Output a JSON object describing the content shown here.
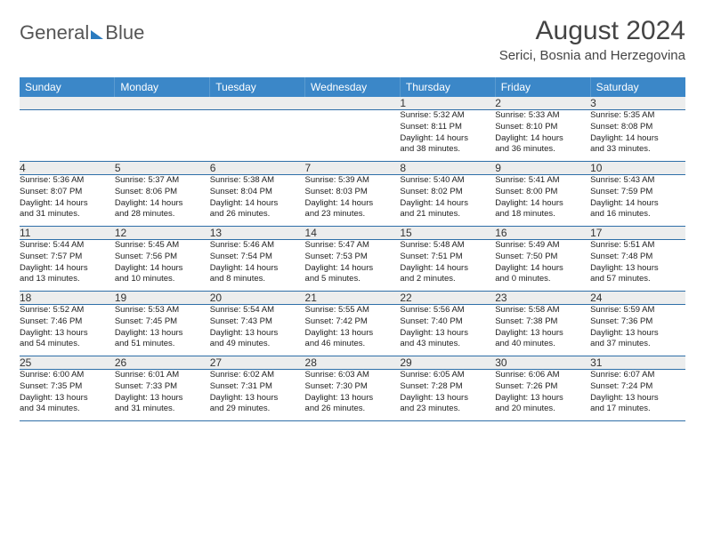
{
  "logo": {
    "part1": "General",
    "part2": "Blue"
  },
  "title": "August 2024",
  "subtitle": "Serici, Bosnia and Herzegovina",
  "day_headers": [
    "Sunday",
    "Monday",
    "Tuesday",
    "Wednesday",
    "Thursday",
    "Friday",
    "Saturday"
  ],
  "colors": {
    "header_bg": "#3b87c8",
    "daynum_bg": "#eceded",
    "row_border": "#2f6fa8"
  },
  "weeks": [
    {
      "nums": [
        "",
        "",
        "",
        "",
        "1",
        "2",
        "3"
      ],
      "cells": [
        {
          "sunrise": "",
          "sunset": "",
          "daylight1": "",
          "daylight2": ""
        },
        {
          "sunrise": "",
          "sunset": "",
          "daylight1": "",
          "daylight2": ""
        },
        {
          "sunrise": "",
          "sunset": "",
          "daylight1": "",
          "daylight2": ""
        },
        {
          "sunrise": "",
          "sunset": "",
          "daylight1": "",
          "daylight2": ""
        },
        {
          "sunrise": "Sunrise: 5:32 AM",
          "sunset": "Sunset: 8:11 PM",
          "daylight1": "Daylight: 14 hours",
          "daylight2": "and 38 minutes."
        },
        {
          "sunrise": "Sunrise: 5:33 AM",
          "sunset": "Sunset: 8:10 PM",
          "daylight1": "Daylight: 14 hours",
          "daylight2": "and 36 minutes."
        },
        {
          "sunrise": "Sunrise: 5:35 AM",
          "sunset": "Sunset: 8:08 PM",
          "daylight1": "Daylight: 14 hours",
          "daylight2": "and 33 minutes."
        }
      ]
    },
    {
      "nums": [
        "4",
        "5",
        "6",
        "7",
        "8",
        "9",
        "10"
      ],
      "cells": [
        {
          "sunrise": "Sunrise: 5:36 AM",
          "sunset": "Sunset: 8:07 PM",
          "daylight1": "Daylight: 14 hours",
          "daylight2": "and 31 minutes."
        },
        {
          "sunrise": "Sunrise: 5:37 AM",
          "sunset": "Sunset: 8:06 PM",
          "daylight1": "Daylight: 14 hours",
          "daylight2": "and 28 minutes."
        },
        {
          "sunrise": "Sunrise: 5:38 AM",
          "sunset": "Sunset: 8:04 PM",
          "daylight1": "Daylight: 14 hours",
          "daylight2": "and 26 minutes."
        },
        {
          "sunrise": "Sunrise: 5:39 AM",
          "sunset": "Sunset: 8:03 PM",
          "daylight1": "Daylight: 14 hours",
          "daylight2": "and 23 minutes."
        },
        {
          "sunrise": "Sunrise: 5:40 AM",
          "sunset": "Sunset: 8:02 PM",
          "daylight1": "Daylight: 14 hours",
          "daylight2": "and 21 minutes."
        },
        {
          "sunrise": "Sunrise: 5:41 AM",
          "sunset": "Sunset: 8:00 PM",
          "daylight1": "Daylight: 14 hours",
          "daylight2": "and 18 minutes."
        },
        {
          "sunrise": "Sunrise: 5:43 AM",
          "sunset": "Sunset: 7:59 PM",
          "daylight1": "Daylight: 14 hours",
          "daylight2": "and 16 minutes."
        }
      ]
    },
    {
      "nums": [
        "11",
        "12",
        "13",
        "14",
        "15",
        "16",
        "17"
      ],
      "cells": [
        {
          "sunrise": "Sunrise: 5:44 AM",
          "sunset": "Sunset: 7:57 PM",
          "daylight1": "Daylight: 14 hours",
          "daylight2": "and 13 minutes."
        },
        {
          "sunrise": "Sunrise: 5:45 AM",
          "sunset": "Sunset: 7:56 PM",
          "daylight1": "Daylight: 14 hours",
          "daylight2": "and 10 minutes."
        },
        {
          "sunrise": "Sunrise: 5:46 AM",
          "sunset": "Sunset: 7:54 PM",
          "daylight1": "Daylight: 14 hours",
          "daylight2": "and 8 minutes."
        },
        {
          "sunrise": "Sunrise: 5:47 AM",
          "sunset": "Sunset: 7:53 PM",
          "daylight1": "Daylight: 14 hours",
          "daylight2": "and 5 minutes."
        },
        {
          "sunrise": "Sunrise: 5:48 AM",
          "sunset": "Sunset: 7:51 PM",
          "daylight1": "Daylight: 14 hours",
          "daylight2": "and 2 minutes."
        },
        {
          "sunrise": "Sunrise: 5:49 AM",
          "sunset": "Sunset: 7:50 PM",
          "daylight1": "Daylight: 14 hours",
          "daylight2": "and 0 minutes."
        },
        {
          "sunrise": "Sunrise: 5:51 AM",
          "sunset": "Sunset: 7:48 PM",
          "daylight1": "Daylight: 13 hours",
          "daylight2": "and 57 minutes."
        }
      ]
    },
    {
      "nums": [
        "18",
        "19",
        "20",
        "21",
        "22",
        "23",
        "24"
      ],
      "cells": [
        {
          "sunrise": "Sunrise: 5:52 AM",
          "sunset": "Sunset: 7:46 PM",
          "daylight1": "Daylight: 13 hours",
          "daylight2": "and 54 minutes."
        },
        {
          "sunrise": "Sunrise: 5:53 AM",
          "sunset": "Sunset: 7:45 PM",
          "daylight1": "Daylight: 13 hours",
          "daylight2": "and 51 minutes."
        },
        {
          "sunrise": "Sunrise: 5:54 AM",
          "sunset": "Sunset: 7:43 PM",
          "daylight1": "Daylight: 13 hours",
          "daylight2": "and 49 minutes."
        },
        {
          "sunrise": "Sunrise: 5:55 AM",
          "sunset": "Sunset: 7:42 PM",
          "daylight1": "Daylight: 13 hours",
          "daylight2": "and 46 minutes."
        },
        {
          "sunrise": "Sunrise: 5:56 AM",
          "sunset": "Sunset: 7:40 PM",
          "daylight1": "Daylight: 13 hours",
          "daylight2": "and 43 minutes."
        },
        {
          "sunrise": "Sunrise: 5:58 AM",
          "sunset": "Sunset: 7:38 PM",
          "daylight1": "Daylight: 13 hours",
          "daylight2": "and 40 minutes."
        },
        {
          "sunrise": "Sunrise: 5:59 AM",
          "sunset": "Sunset: 7:36 PM",
          "daylight1": "Daylight: 13 hours",
          "daylight2": "and 37 minutes."
        }
      ]
    },
    {
      "nums": [
        "25",
        "26",
        "27",
        "28",
        "29",
        "30",
        "31"
      ],
      "cells": [
        {
          "sunrise": "Sunrise: 6:00 AM",
          "sunset": "Sunset: 7:35 PM",
          "daylight1": "Daylight: 13 hours",
          "daylight2": "and 34 minutes."
        },
        {
          "sunrise": "Sunrise: 6:01 AM",
          "sunset": "Sunset: 7:33 PM",
          "daylight1": "Daylight: 13 hours",
          "daylight2": "and 31 minutes."
        },
        {
          "sunrise": "Sunrise: 6:02 AM",
          "sunset": "Sunset: 7:31 PM",
          "daylight1": "Daylight: 13 hours",
          "daylight2": "and 29 minutes."
        },
        {
          "sunrise": "Sunrise: 6:03 AM",
          "sunset": "Sunset: 7:30 PM",
          "daylight1": "Daylight: 13 hours",
          "daylight2": "and 26 minutes."
        },
        {
          "sunrise": "Sunrise: 6:05 AM",
          "sunset": "Sunset: 7:28 PM",
          "daylight1": "Daylight: 13 hours",
          "daylight2": "and 23 minutes."
        },
        {
          "sunrise": "Sunrise: 6:06 AM",
          "sunset": "Sunset: 7:26 PM",
          "daylight1": "Daylight: 13 hours",
          "daylight2": "and 20 minutes."
        },
        {
          "sunrise": "Sunrise: 6:07 AM",
          "sunset": "Sunset: 7:24 PM",
          "daylight1": "Daylight: 13 hours",
          "daylight2": "and 17 minutes."
        }
      ]
    }
  ]
}
